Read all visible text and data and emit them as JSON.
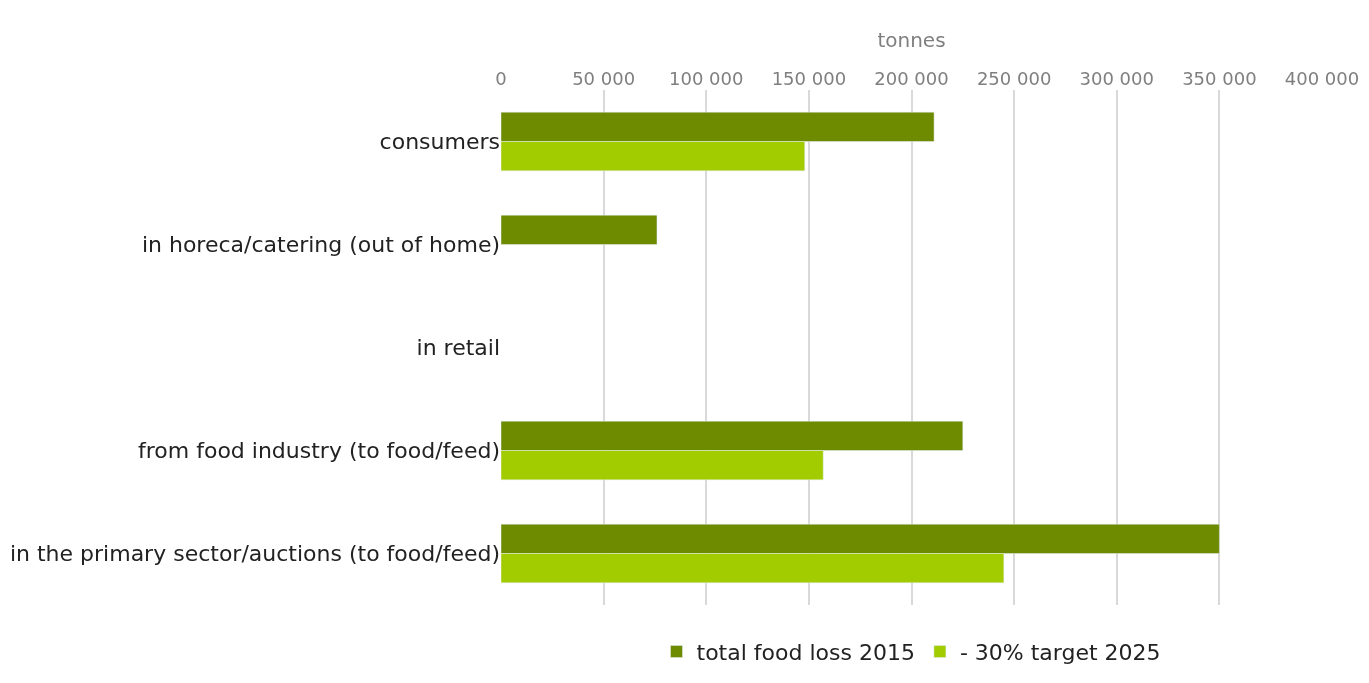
{
  "chart_data": {
    "type": "bar",
    "orientation": "horizontal",
    "xlabel": "tonnes",
    "categories": [
      "consumers",
      "in horeca/catering (out of home)",
      "in retail",
      "from food industry (to food/feed)",
      "in the primary sector/auctions (to food/feed)"
    ],
    "series": [
      {
        "name": "total food loss 2015",
        "color": "#6e8b00",
        "values": [
          211000,
          76000,
          null,
          225000,
          350000
        ]
      },
      {
        "name": "- 30% target 2025",
        "color": "#a3cc00",
        "values": [
          148000,
          null,
          null,
          157000,
          245000
        ]
      }
    ],
    "xlim": [
      0,
      400000
    ],
    "xticks": [
      0,
      {
        "value": 50000,
        "label": "50 000"
      },
      {
        "value": 100000,
        "label": "100 000"
      },
      {
        "value": 150000,
        "label": "150 000"
      },
      {
        "value": 200000,
        "label": "200 000"
      },
      {
        "value": 250000,
        "label": "250 000"
      },
      {
        "value": 300000,
        "label": "300 000"
      },
      {
        "value": 350000,
        "label": "350 000"
      },
      {
        "value": 400000,
        "label": "400 000"
      }
    ],
    "grid": "x",
    "legend": "bottom"
  }
}
